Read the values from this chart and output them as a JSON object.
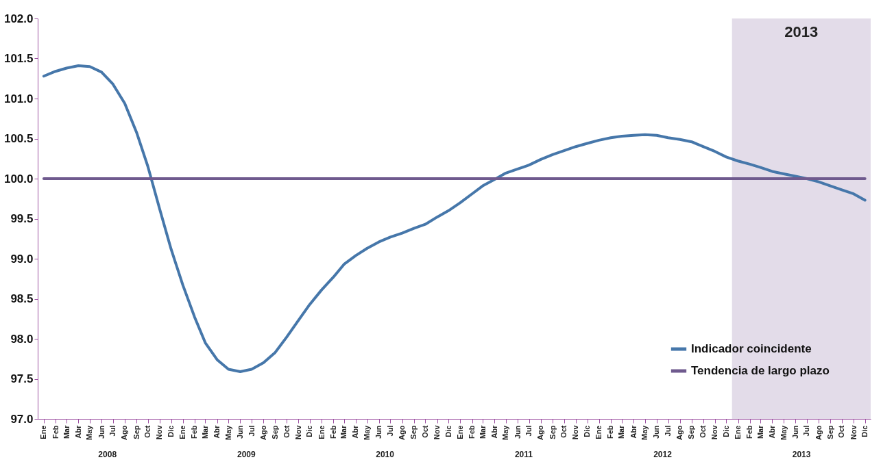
{
  "chart_data": {
    "type": "line",
    "x": [
      "2008-01",
      "2008-02",
      "2008-03",
      "2008-04",
      "2008-05",
      "2008-06",
      "2008-07",
      "2008-08",
      "2008-09",
      "2008-10",
      "2008-11",
      "2008-12",
      "2009-01",
      "2009-02",
      "2009-03",
      "2009-04",
      "2009-05",
      "2009-06",
      "2009-07",
      "2009-08",
      "2009-09",
      "2009-10",
      "2009-11",
      "2009-12",
      "2010-01",
      "2010-02",
      "2010-03",
      "2010-04",
      "2010-05",
      "2010-06",
      "2010-07",
      "2010-08",
      "2010-09",
      "2010-10",
      "2010-11",
      "2010-12",
      "2011-01",
      "2011-02",
      "2011-03",
      "2011-04",
      "2011-05",
      "2011-06",
      "2011-07",
      "2011-08",
      "2011-09",
      "2011-10",
      "2011-11",
      "2011-12",
      "2012-01",
      "2012-02",
      "2012-03",
      "2012-04",
      "2012-05",
      "2012-06",
      "2012-07",
      "2012-08",
      "2012-09",
      "2012-10",
      "2012-11",
      "2012-12",
      "2013-01",
      "2013-02",
      "2013-03",
      "2013-04",
      "2013-05",
      "2013-06",
      "2013-07",
      "2013-08",
      "2013-09",
      "2013-10",
      "2013-11",
      "2013-12"
    ],
    "series": [
      {
        "name": "Indicador coincidente",
        "color": "#4677aa",
        "values": [
          101.28,
          101.34,
          101.38,
          101.41,
          101.4,
          101.33,
          101.18,
          100.94,
          100.58,
          100.15,
          99.62,
          99.12,
          98.67,
          98.27,
          97.95,
          97.74,
          97.62,
          97.59,
          97.62,
          97.7,
          97.83,
          98.02,
          98.23,
          98.43,
          98.61,
          98.77,
          98.93,
          99.04,
          99.13,
          99.21,
          99.27,
          99.32,
          99.38,
          99.43,
          99.52,
          99.6,
          99.7,
          99.81,
          99.91,
          99.99,
          100.07,
          100.12,
          100.17,
          100.24,
          100.3,
          100.35,
          100.4,
          100.44,
          100.48,
          100.51,
          100.53,
          100.54,
          100.55,
          100.54,
          100.51,
          100.49,
          100.46,
          100.4,
          100.34,
          100.27,
          100.22,
          100.18,
          100.14,
          100.09,
          100.06,
          100.03,
          100.0,
          99.96,
          99.91,
          99.86,
          99.81,
          99.73
        ]
      },
      {
        "name": "Tendencia de largo plazo",
        "color": "#6f5a8e",
        "values": [
          100,
          100,
          100,
          100,
          100,
          100,
          100,
          100,
          100,
          100,
          100,
          100,
          100,
          100,
          100,
          100,
          100,
          100,
          100,
          100,
          100,
          100,
          100,
          100,
          100,
          100,
          100,
          100,
          100,
          100,
          100,
          100,
          100,
          100,
          100,
          100,
          100,
          100,
          100,
          100,
          100,
          100,
          100,
          100,
          100,
          100,
          100,
          100,
          100,
          100,
          100,
          100,
          100,
          100,
          100,
          100,
          100,
          100,
          100,
          100,
          100,
          100,
          100,
          100,
          100,
          100,
          100,
          100,
          100,
          100,
          100,
          100
        ]
      }
    ],
    "xlim": [
      "2007-12-16",
      "2013-12-16"
    ],
    "xticks": [
      {
        "value": "2008-01",
        "label": "Ene"
      },
      {
        "value": "2008-02",
        "label": "Feb"
      },
      {
        "value": "2008-03",
        "label": "Mar"
      },
      {
        "value": "2008-04",
        "label": "Abr"
      },
      {
        "value": "2008-05",
        "label": "May"
      },
      {
        "value": "2008-06",
        "label": "Jun"
      },
      {
        "value": "2008-07",
        "label": "Jul"
      },
      {
        "value": "2008-08",
        "label": "Ago"
      },
      {
        "value": "2008-09",
        "label": "Sep"
      },
      {
        "value": "2008-10",
        "label": "Oct"
      },
      {
        "value": "2008-11",
        "label": "Nov"
      },
      {
        "value": "2008-12",
        "label": "Dic"
      },
      {
        "value": "2009-01",
        "label": "Ene"
      },
      {
        "value": "2009-02",
        "label": "Feb"
      },
      {
        "value": "2009-03",
        "label": "Mar"
      },
      {
        "value": "2009-04",
        "label": "Abr"
      },
      {
        "value": "2009-05",
        "label": "May"
      },
      {
        "value": "2009-06",
        "label": "Jun"
      },
      {
        "value": "2009-07",
        "label": "Jul"
      },
      {
        "value": "2009-08",
        "label": "Ago"
      },
      {
        "value": "2009-09",
        "label": "Sep"
      },
      {
        "value": "2009-10",
        "label": "Oct"
      },
      {
        "value": "2009-11",
        "label": "Nov"
      },
      {
        "value": "2009-12",
        "label": "Dic"
      },
      {
        "value": "2010-01",
        "label": "Ene"
      },
      {
        "value": "2010-02",
        "label": "Feb"
      },
      {
        "value": "2010-03",
        "label": "Mar"
      },
      {
        "value": "2010-04",
        "label": "Abr"
      },
      {
        "value": "2010-05",
        "label": "May"
      },
      {
        "value": "2010-06",
        "label": "Jun"
      },
      {
        "value": "2010-07",
        "label": "Jul"
      },
      {
        "value": "2010-08",
        "label": "Ago"
      },
      {
        "value": "2010-09",
        "label": "Sep"
      },
      {
        "value": "2010-10",
        "label": "Oct"
      },
      {
        "value": "2010-11",
        "label": "Nov"
      },
      {
        "value": "2010-12",
        "label": "Dic"
      },
      {
        "value": "2011-01",
        "label": "Ene"
      },
      {
        "value": "2011-02",
        "label": "Feb"
      },
      {
        "value": "2011-03",
        "label": "Mar"
      },
      {
        "value": "2011-04",
        "label": "Abr"
      },
      {
        "value": "2011-05",
        "label": "May"
      },
      {
        "value": "2011-06",
        "label": "Jun"
      },
      {
        "value": "2011-07",
        "label": "Jul"
      },
      {
        "value": "2011-08",
        "label": "Ago"
      },
      {
        "value": "2011-09",
        "label": "Sep"
      },
      {
        "value": "2011-10",
        "label": "Oct"
      },
      {
        "value": "2011-11",
        "label": "Nov"
      },
      {
        "value": "2011-12",
        "label": "Dic"
      },
      {
        "value": "2012-01",
        "label": "Ene"
      },
      {
        "value": "2012-02",
        "label": "Feb"
      },
      {
        "value": "2012-03",
        "label": "Mar"
      },
      {
        "value": "2012-04",
        "label": "Abr"
      },
      {
        "value": "2012-05",
        "label": "May"
      },
      {
        "value": "2012-06",
        "label": "Jun"
      },
      {
        "value": "2012-07",
        "label": "Jul"
      },
      {
        "value": "2012-08",
        "label": "Ago"
      },
      {
        "value": "2012-09",
        "label": "Sep"
      },
      {
        "value": "2012-10",
        "label": "Oct"
      },
      {
        "value": "2012-11",
        "label": "Nov"
      },
      {
        "value": "2012-12",
        "label": "Dic"
      },
      {
        "value": "2013-01",
        "label": "Ene"
      },
      {
        "value": "2013-02",
        "label": "Feb"
      },
      {
        "value": "2013-03",
        "label": "Mar"
      },
      {
        "value": "2013-04",
        "label": "Abr"
      },
      {
        "value": "2013-05",
        "label": "May"
      },
      {
        "value": "2013-06",
        "label": "Jun"
      },
      {
        "value": "2013-07",
        "label": "Jul"
      },
      {
        "value": "2013-08",
        "label": "Ago"
      },
      {
        "value": "2013-09",
        "label": "Sep"
      },
      {
        "value": "2013-10",
        "label": "Oct"
      },
      {
        "value": "2013-11",
        "label": "Nov"
      },
      {
        "value": "2013-12",
        "label": "Dic"
      }
    ],
    "ylim": [
      97,
      102
    ],
    "yticks": [
      {
        "value": 97,
        "label": "97.0"
      },
      {
        "value": 97.5,
        "label": "97.5"
      },
      {
        "value": 98,
        "label": "98.0"
      },
      {
        "value": 98.5,
        "label": "98.5"
      },
      {
        "value": 99,
        "label": "99.0"
      },
      {
        "value": 99.5,
        "label": "99.5"
      },
      {
        "value": 100,
        "label": "100.0"
      },
      {
        "value": 100.5,
        "label": "100.5"
      },
      {
        "value": 101,
        "label": "101.0"
      },
      {
        "value": 101.5,
        "label": "101.5"
      },
      {
        "value": 102,
        "label": "102.0"
      }
    ],
    "bands": [
      {
        "axis": "x",
        "from": "2012-12-16",
        "to": "2013-12-16",
        "label": "2013",
        "color": "#e3dce9"
      }
    ],
    "annotations": [
      "2008",
      "2009",
      "2010",
      "2011",
      "2012",
      "2013"
    ],
    "legend": "bottom right",
    "grid": false,
    "marker": "none",
    "line_style": "solid"
  }
}
